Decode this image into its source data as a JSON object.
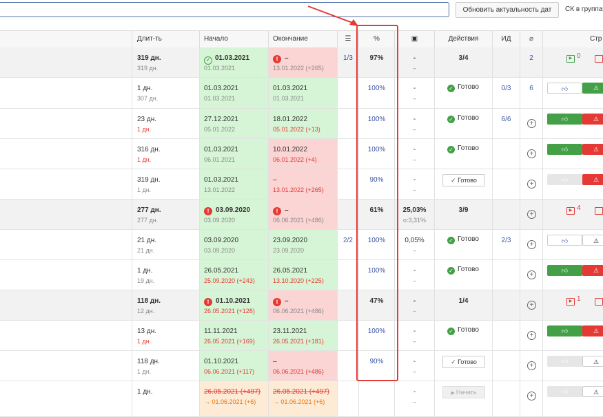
{
  "toolbar": {
    "search_value": "",
    "update_dates_label": "Обновить актуальность дат",
    "sk_label": "СК в группа"
  },
  "columns": {
    "duration": "Длит-ть",
    "start": "Начало",
    "end": "Окончание",
    "percent": "%",
    "actions": "Действия",
    "id": "ИД",
    "str": "Стр"
  },
  "colors": {
    "accent_red": "#e53935",
    "green_bg": "#d6f5d6",
    "red_bg": "#fbd4d4",
    "green": "#43a047"
  },
  "rows": [
    {
      "type": "group",
      "dur1": "319 дн.",
      "dur2": "319 дн.",
      "start1": "01.03.2021",
      "start2": "01.03.2021",
      "start_icon": "ring",
      "end1": "–",
      "end2": "13.01.2022 (+265)",
      "end_icon": "warn",
      "checklist": "1/3",
      "pct": "97%",
      "cost1": "-",
      "cost2": "–",
      "actions": "3/4",
      "id": "",
      "attach": "2",
      "str_badge": "0",
      "str_color": "green"
    },
    {
      "type": "task",
      "dur1": "1 дн.",
      "dur2": "307 дн.",
      "start1": "01.03.2021",
      "start2": "01.03.2021",
      "end1": "01.03.2021",
      "end2": "01.03.2021",
      "pct": "100%",
      "cost1": "-",
      "cost2": "–",
      "status": "Готово",
      "id": "0/3",
      "attach": "6",
      "buttons": "w-g"
    },
    {
      "type": "task",
      "dur1": "23 дн.",
      "dur2": "1 дн.",
      "dur2_red": true,
      "start1": "27.12.2021",
      "start2": "05.01.2022",
      "end1": "18.01.2022",
      "end2": "05.01.2022 (+13)",
      "end2_red": true,
      "pct": "100%",
      "cost1": "-",
      "cost2": "–",
      "status": "Готово",
      "id": "6/6",
      "buttons": "g-r"
    },
    {
      "type": "task",
      "dur1": "316 дн.",
      "dur2": "1 дн.",
      "dur2_red": true,
      "start1": "01.03.2021",
      "start2": "06.01.2021",
      "end1": "10.01.2022",
      "end2": "06.01.2022 (+4)",
      "end2_red": true,
      "end_bg": "red",
      "pct": "100%",
      "cost1": "-",
      "cost2": "–",
      "status": "Готово",
      "buttons": "g-r"
    },
    {
      "type": "task",
      "dur1": "319 дн.",
      "dur2": "1 дн.",
      "start1": "01.03.2021",
      "start2": "13.01.2022",
      "end1": "–",
      "end2": "13.01.2022 (+265)",
      "end2_red": true,
      "end_bg": "red",
      "pct": "90%",
      "cost1": "-",
      "cost2": "–",
      "ready_button": "Готово",
      "buttons": "gray-r"
    },
    {
      "type": "group",
      "dur1": "277 дн.",
      "dur2": "277 дн.",
      "start1": "03.09.2020",
      "start2": "03.09.2020",
      "start_icon": "warn",
      "end1": "–",
      "end2": "06.06.2021 (+486)",
      "end_icon": "warn",
      "pct": "61%",
      "cost1": "25,03%",
      "cost2": "о:3,31%",
      "actions": "3/9",
      "str_badge": "4",
      "str_color": "red"
    },
    {
      "type": "task",
      "dur1": "21 дн.",
      "dur2": "21 дн.",
      "start1": "03.09.2020",
      "start2": "03.09.2020",
      "end1": "23.09.2020",
      "end2": "23.09.2020",
      "checklist": "2/2",
      "pct": "100%",
      "cost1": "0,05%",
      "cost2": "–",
      "status": "Готово",
      "id": "2/3",
      "buttons": "w-wk"
    },
    {
      "type": "task",
      "dur1": "1 дн.",
      "dur2": "19 дн.",
      "start1": "26.05.2021",
      "start2": "25.09.2020 (+243)",
      "start2_red": true,
      "end1": "26.05.2021",
      "end2": "13.10.2020 (+225)",
      "end2_red": true,
      "pct": "100%",
      "cost1": "-",
      "cost2": "–",
      "status": "Готово",
      "buttons": "g-r"
    },
    {
      "type": "group",
      "dur1": "118 дн.",
      "dur2": "12 дн.",
      "start1": "01.10.2021",
      "start2": "26.05.2021 (+128)",
      "start2_red": true,
      "start_icon": "warn",
      "end1": "–",
      "end2": "06.06.2021 (+486)",
      "end_icon": "warn",
      "pct": "47%",
      "cost1": "-",
      "cost2": "–",
      "actions": "1/4",
      "str_badge": "1",
      "str_color": "red"
    },
    {
      "type": "task",
      "dur1": "13 дн.",
      "dur2": "1 дн.",
      "dur2_red": true,
      "start1": "11.11.2021",
      "start2": "26.05.2021 (+169)",
      "start2_red": true,
      "end1": "23.11.2021",
      "end2": "26.05.2021 (+181)",
      "end2_red": true,
      "pct": "100%",
      "cost1": "-",
      "cost2": "–",
      "status": "Готово",
      "buttons": "g-r"
    },
    {
      "type": "task",
      "dur1": "118 дн.",
      "dur2": "1 дн.",
      "start1": "01.10.2021",
      "start2": "06.06.2021 (+117)",
      "start2_red": true,
      "end1": "–",
      "end2": "06.06.2021 (+486)",
      "end2_red": true,
      "end_bg": "red",
      "pct": "90%",
      "cost1": "-",
      "cost2": "–",
      "ready_button": "Готово",
      "buttons": "gray-wk"
    },
    {
      "type": "future",
      "dur1": "1 дн.",
      "start1": "26.05.2021 (+497)",
      "start2": "→ 01.06.2021 (+6)",
      "end1": "26.05.2021 (+497)",
      "end2": "→ 01.06.2021 (+6)",
      "cost1": "-",
      "cost2": "–",
      "start_button": "Начать",
      "buttons": "gray-wk"
    }
  ]
}
